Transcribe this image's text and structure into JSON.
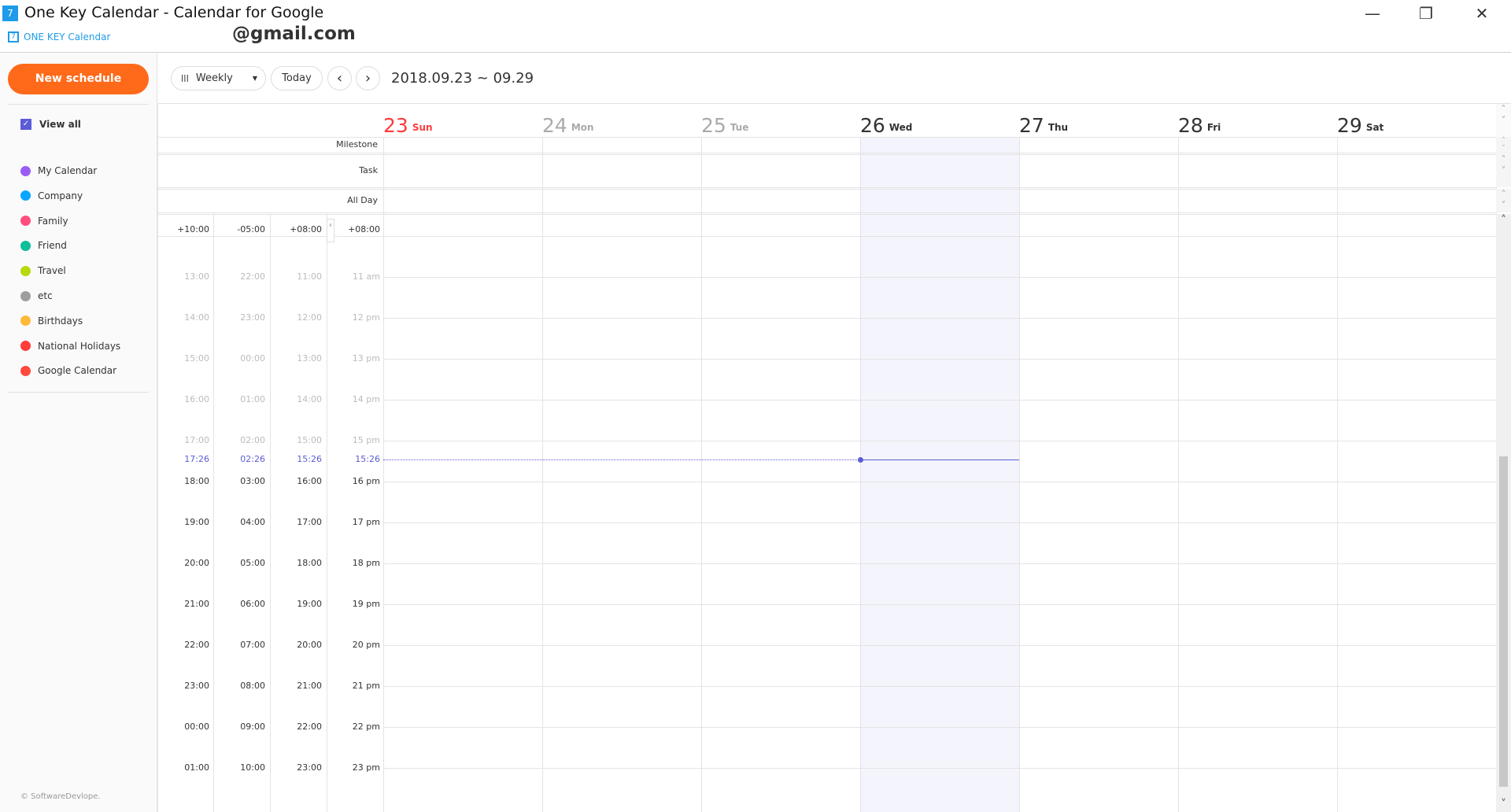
{
  "window": {
    "title": "One Key Calendar - Calendar for Google",
    "brand": "ONE KEY Calendar",
    "account": "@gmail.com",
    "minimize": "—",
    "restore": "❐",
    "close": "✕"
  },
  "sidebar": {
    "new_schedule": "New schedule",
    "view_all": "View all",
    "calendars": [
      {
        "label": "My Calendar",
        "color": "#9b5cf6"
      },
      {
        "label": "Company",
        "color": "#0aa6ff"
      },
      {
        "label": "Family",
        "color": "#ff4d7e"
      },
      {
        "label": "Friend",
        "color": "#0dbf9a"
      },
      {
        "label": "Travel",
        "color": "#b9d80d"
      },
      {
        "label": "etc",
        "color": "#9e9e9e"
      },
      {
        "label": "Birthdays",
        "color": "#ffb938"
      },
      {
        "label": "National Holidays",
        "color": "#ff3b3b"
      },
      {
        "label": "Google Calendar",
        "color": "#ff4a3d"
      }
    ],
    "footer": "© SoftwareDevlope."
  },
  "toolbar": {
    "view": "Weekly",
    "view_icon": "|||",
    "today": "Today",
    "prev": "‹",
    "next": "›",
    "range": "2018.09.23 ~ 09.29"
  },
  "days": [
    {
      "num": "23",
      "name": "Sun",
      "state": "sunday"
    },
    {
      "num": "24",
      "name": "Mon",
      "state": "past"
    },
    {
      "num": "25",
      "name": "Tue",
      "state": "past"
    },
    {
      "num": "26",
      "name": "Wed",
      "state": "today"
    },
    {
      "num": "27",
      "name": "Thu",
      "state": "future"
    },
    {
      "num": "28",
      "name": "Fri",
      "state": "future"
    },
    {
      "num": "29",
      "name": "Sat",
      "state": "future"
    }
  ],
  "rows": {
    "milestone": "Milestone",
    "task": "Task",
    "allday": "All Day"
  },
  "timezones": [
    {
      "offset": "+10:00",
      "now": "17:26",
      "hours": [
        "13:00",
        "14:00",
        "15:00",
        "16:00",
        "17:00",
        "18:00",
        "19:00",
        "20:00",
        "21:00",
        "22:00",
        "23:00",
        "00:00",
        "01:00"
      ]
    },
    {
      "offset": "-05:00",
      "now": "02:26",
      "hours": [
        "22:00",
        "23:00",
        "00:00",
        "01:00",
        "02:00",
        "03:00",
        "04:00",
        "05:00",
        "06:00",
        "07:00",
        "08:00",
        "09:00",
        "10:00"
      ]
    },
    {
      "offset": "+08:00",
      "now": "15:26",
      "hours": [
        "11:00",
        "12:00",
        "13:00",
        "14:00",
        "15:00",
        "16:00",
        "17:00",
        "18:00",
        "19:00",
        "20:00",
        "21:00",
        "22:00",
        "23:00"
      ]
    },
    {
      "offset": "+08:00",
      "now": "15:26",
      "hours": [
        "11 am",
        "12 pm",
        "13 pm",
        "14 pm",
        "15 pm",
        "16 pm",
        "17 pm",
        "18 pm",
        "19 pm",
        "20 pm",
        "21 pm",
        "22 pm",
        "23 pm"
      ]
    }
  ],
  "colors": {
    "accent": "#ff6a1a",
    "now": "#5b5bd6",
    "sunday": "#ff3b3b",
    "today_bg": "#f4f4fc",
    "brand": "#1e9be9"
  }
}
